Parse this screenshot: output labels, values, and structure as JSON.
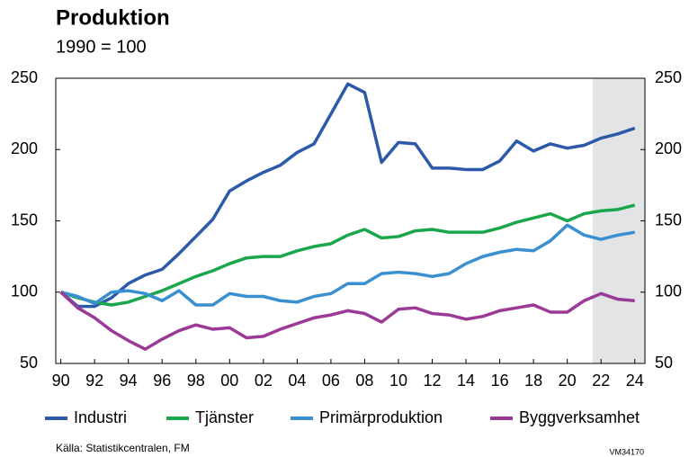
{
  "chart_data": {
    "type": "line",
    "title": "Produktion",
    "subtitle": "1990 = 100",
    "x": [
      1990,
      1991,
      1992,
      1993,
      1994,
      1995,
      1996,
      1997,
      1998,
      1999,
      2000,
      2001,
      2002,
      2003,
      2004,
      2005,
      2006,
      2007,
      2008,
      2009,
      2010,
      2011,
      2012,
      2013,
      2014,
      2015,
      2016,
      2017,
      2018,
      2019,
      2020,
      2021,
      2022,
      2023,
      2024
    ],
    "series": [
      {
        "name": "Industri",
        "color": "#2c59a8",
        "values": [
          100,
          90,
          90,
          96,
          106,
          112,
          116,
          127,
          139,
          151,
          171,
          178,
          184,
          189,
          198,
          204,
          225,
          246,
          240,
          191,
          205,
          204,
          187,
          187,
          186,
          186,
          192,
          206,
          199,
          204,
          201,
          203,
          208,
          211,
          215
        ]
      },
      {
        "name": "Tjänster",
        "color": "#1aa64a",
        "values": [
          100,
          96,
          93,
          91,
          93,
          97,
          101,
          106,
          111,
          115,
          120,
          124,
          125,
          125,
          129,
          132,
          134,
          140,
          144,
          138,
          139,
          143,
          144,
          142,
          142,
          142,
          145,
          149,
          152,
          155,
          150,
          155,
          157,
          158,
          161
        ]
      },
      {
        "name": "Primärproduktion",
        "color": "#3a8fd1",
        "values": [
          100,
          97,
          92,
          100,
          101,
          99,
          94,
          101,
          91,
          91,
          99,
          97,
          97,
          94,
          93,
          97,
          99,
          106,
          106,
          113,
          114,
          113,
          111,
          113,
          120,
          125,
          128,
          130,
          129,
          136,
          147,
          140,
          137,
          140,
          142
        ]
      },
      {
        "name": "Byggverksamhet",
        "color": "#9b3a96",
        "values": [
          100,
          89,
          82,
          73,
          66,
          60,
          67,
          73,
          77,
          74,
          75,
          68,
          69,
          74,
          78,
          82,
          84,
          87,
          85,
          79,
          88,
          89,
          85,
          84,
          81,
          83,
          87,
          89,
          91,
          86,
          86,
          94,
          99,
          95,
          94
        ]
      }
    ],
    "xlim": [
      1989.7,
      2024.6
    ],
    "xticks": [
      {
        "value": 1990,
        "label": "90"
      },
      {
        "value": 1992,
        "label": "92"
      },
      {
        "value": 1994,
        "label": "94"
      },
      {
        "value": 1996,
        "label": "96"
      },
      {
        "value": 1998,
        "label": "98"
      },
      {
        "value": 2000,
        "label": "00"
      },
      {
        "value": 2002,
        "label": "02"
      },
      {
        "value": 2004,
        "label": "04"
      },
      {
        "value": 2006,
        "label": "06"
      },
      {
        "value": 2008,
        "label": "08"
      },
      {
        "value": 2010,
        "label": "10"
      },
      {
        "value": 2012,
        "label": "12"
      },
      {
        "value": 2014,
        "label": "14"
      },
      {
        "value": 2016,
        "label": "16"
      },
      {
        "value": 2018,
        "label": "18"
      },
      {
        "value": 2020,
        "label": "20"
      },
      {
        "value": 2022,
        "label": "22"
      },
      {
        "value": 2024,
        "label": "24"
      }
    ],
    "ylim": [
      50,
      250
    ],
    "yticks": [
      50,
      100,
      150,
      200,
      250
    ],
    "shaded_from": 2021.5,
    "legend": "bottom",
    "source": "Källa: Statistikcentralen, FM",
    "code": "VM34170"
  }
}
